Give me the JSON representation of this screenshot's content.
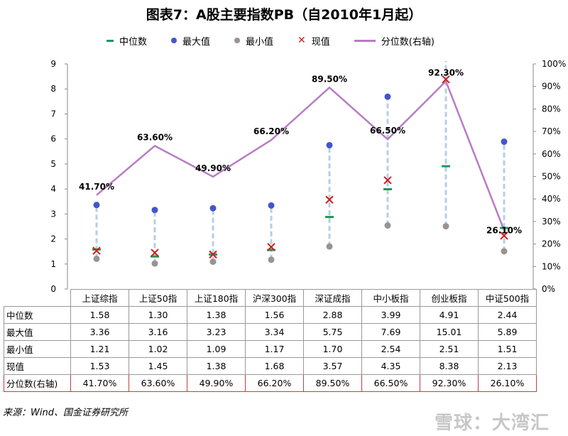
{
  "title": "图表7：A股主要指数PB（自2010年1月起）",
  "legend": {
    "median": "中位数",
    "max": "最大值",
    "min": "最小值",
    "current": "现值",
    "percentile": "分位数(右轴)"
  },
  "table_headers": {
    "median": "中位数",
    "max": "最大值",
    "min": "最小值",
    "current": "现值",
    "percentile": "分位数(右轴)"
  },
  "colors": {
    "median": "#1a9a55",
    "max": "#4455cc",
    "min": "#9a9390",
    "current": "#cc1f1f",
    "percentile": "#b87cc4",
    "range": "#b7cfe3"
  },
  "chart_data": {
    "type": "line",
    "categories": [
      "上证综指",
      "上证50指",
      "上证180指",
      "沪深300指",
      "深证成指",
      "中小板指",
      "创业板指",
      "中证500指"
    ],
    "series": [
      {
        "name": "中位数",
        "values": [
          1.58,
          1.3,
          1.38,
          1.56,
          2.88,
          3.99,
          4.91,
          2.44
        ]
      },
      {
        "name": "最大值",
        "values": [
          3.36,
          3.16,
          3.23,
          3.34,
          5.75,
          7.69,
          15.01,
          5.89
        ]
      },
      {
        "name": "最小值",
        "values": [
          1.21,
          1.02,
          1.09,
          1.17,
          1.7,
          2.54,
          2.51,
          1.51
        ]
      },
      {
        "name": "现值",
        "values": [
          1.53,
          1.45,
          1.38,
          1.68,
          3.57,
          4.35,
          8.38,
          2.13
        ]
      },
      {
        "name": "分位数(右轴)",
        "values": [
          41.7,
          63.6,
          49.9,
          66.2,
          89.5,
          66.5,
          92.3,
          26.1
        ]
      }
    ],
    "percentile_labels": [
      "41.70%",
      "63.60%",
      "49.90%",
      "66.20%",
      "89.50%",
      "66.50%",
      "92.30%",
      "26.10%"
    ],
    "left_ticks": [
      "0",
      "1",
      "2",
      "3",
      "4",
      "5",
      "6",
      "7",
      "8",
      "9"
    ],
    "right_ticks": [
      "0%",
      "10%",
      "20%",
      "30%",
      "40%",
      "50%",
      "60%",
      "70%",
      "80%",
      "90%",
      "100%"
    ],
    "ylim": [
      0,
      9
    ],
    "y2lim": [
      0,
      100
    ],
    "legend_position": "top"
  },
  "table_rows": {
    "median": [
      "1.58",
      "1.30",
      "1.38",
      "1.56",
      "2.88",
      "3.99",
      "4.91",
      "2.44"
    ],
    "max": [
      "3.36",
      "3.16",
      "3.23",
      "3.34",
      "5.75",
      "7.69",
      "15.01",
      "5.89"
    ],
    "min": [
      "1.21",
      "1.02",
      "1.09",
      "1.17",
      "1.70",
      "2.54",
      "2.51",
      "1.51"
    ],
    "current": [
      "1.53",
      "1.45",
      "1.38",
      "1.68",
      "3.57",
      "4.35",
      "8.38",
      "2.13"
    ],
    "percentile": [
      "41.70%",
      "63.60%",
      "49.90%",
      "66.20%",
      "89.50%",
      "66.50%",
      "92.30%",
      "26.10%"
    ]
  },
  "source": "来源：Wind、国金证券研究所",
  "watermark": "雪球：大湾汇"
}
